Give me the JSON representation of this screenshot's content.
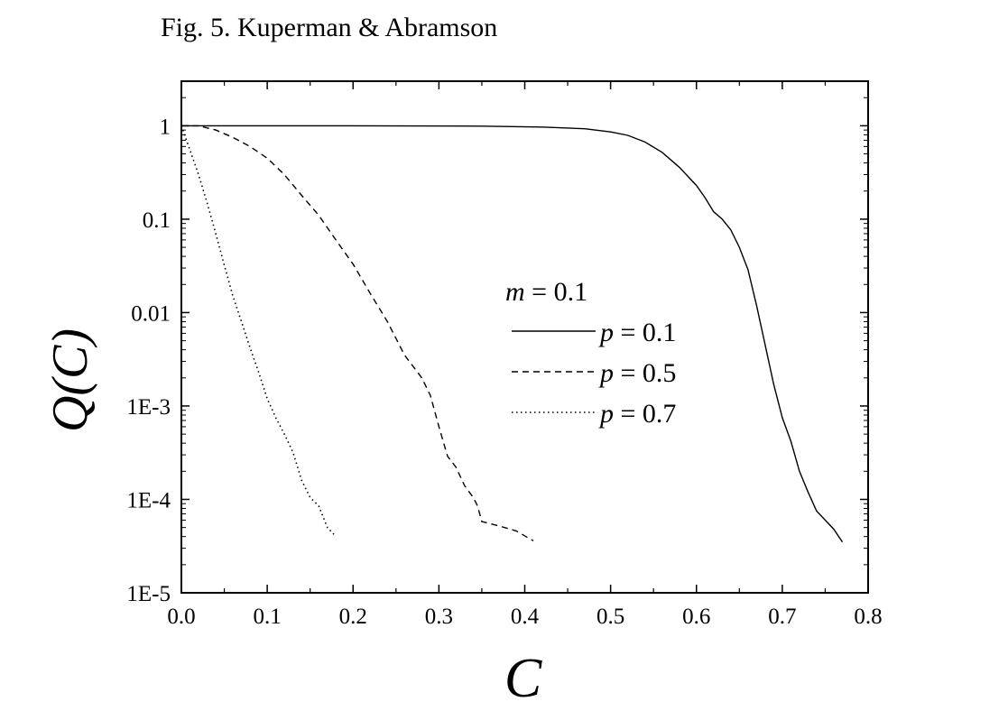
{
  "caption": "Fig. 5. Kuperman & Abramson",
  "chart_data": {
    "type": "line",
    "xlabel": "C",
    "ylabel": "Q(C)",
    "xlim": [
      0,
      0.8
    ],
    "ylim": [
      1e-05,
      3
    ],
    "yscale": "log",
    "grid": false,
    "x_ticks": [
      0.0,
      0.1,
      0.2,
      0.3,
      0.4,
      0.5,
      0.6,
      0.7,
      0.8
    ],
    "x_tick_labels": [
      "0.0",
      "0.1",
      "0.2",
      "0.3",
      "0.4",
      "0.5",
      "0.6",
      "0.7",
      "0.8"
    ],
    "y_ticks": [
      1,
      0.1,
      0.01,
      0.001,
      0.0001,
      1e-05
    ],
    "y_tick_labels": [
      "1",
      "0.1",
      "0.01",
      "1E-3",
      "1E-4",
      "1E-5"
    ],
    "legend": {
      "title_var": "m",
      "title_rest": " = 0.1",
      "placement": "center-right"
    },
    "series": [
      {
        "name_var": "p",
        "name_rest": " = 0.1",
        "style": "solid",
        "x": [
          0.0,
          0.2,
          0.35,
          0.42,
          0.47,
          0.5,
          0.52,
          0.54,
          0.56,
          0.58,
          0.6,
          0.61,
          0.62,
          0.63,
          0.64,
          0.65,
          0.66,
          0.67,
          0.68,
          0.69,
          0.7,
          0.71,
          0.72,
          0.73,
          0.74,
          0.75,
          0.76,
          0.77
        ],
        "y": [
          1,
          1,
          0.99,
          0.97,
          0.93,
          0.86,
          0.79,
          0.67,
          0.52,
          0.36,
          0.23,
          0.17,
          0.12,
          0.1,
          0.077,
          0.05,
          0.029,
          0.012,
          0.0045,
          0.0017,
          0.00075,
          0.00042,
          0.0002,
          0.00012,
          7.5e-05,
          6e-05,
          4.8e-05,
          3.5e-05
        ]
      },
      {
        "name_var": "p",
        "name_rest": " = 0.5",
        "style": "dashed",
        "x": [
          0.0,
          0.02,
          0.04,
          0.06,
          0.08,
          0.1,
          0.12,
          0.14,
          0.16,
          0.18,
          0.2,
          0.22,
          0.24,
          0.26,
          0.28,
          0.29,
          0.3,
          0.31,
          0.32,
          0.33,
          0.34,
          0.345,
          0.35,
          0.37,
          0.39,
          0.41
        ],
        "y": [
          1,
          1,
          0.9,
          0.75,
          0.6,
          0.45,
          0.3,
          0.18,
          0.11,
          0.06,
          0.033,
          0.016,
          0.008,
          0.0035,
          0.002,
          0.0013,
          0.0006,
          0.00029,
          0.00022,
          0.00014,
          0.000105,
          8.5e-05,
          5.8e-05,
          5.2e-05,
          4.6e-05,
          3.6e-05
        ]
      },
      {
        "name_var": "p",
        "name_rest": " = 0.7",
        "style": "dotted",
        "x": [
          0.0,
          0.01,
          0.02,
          0.03,
          0.04,
          0.05,
          0.06,
          0.07,
          0.08,
          0.09,
          0.1,
          0.11,
          0.12,
          0.13,
          0.14,
          0.15,
          0.16,
          0.165,
          0.17,
          0.178
        ],
        "y": [
          1,
          0.55,
          0.3,
          0.15,
          0.07,
          0.032,
          0.015,
          0.008,
          0.0042,
          0.0023,
          0.0012,
          0.00075,
          0.0005,
          0.00032,
          0.00016,
          0.000105,
          8.5e-05,
          6.5e-05,
          5e-05,
          4.2e-05
        ]
      }
    ]
  }
}
